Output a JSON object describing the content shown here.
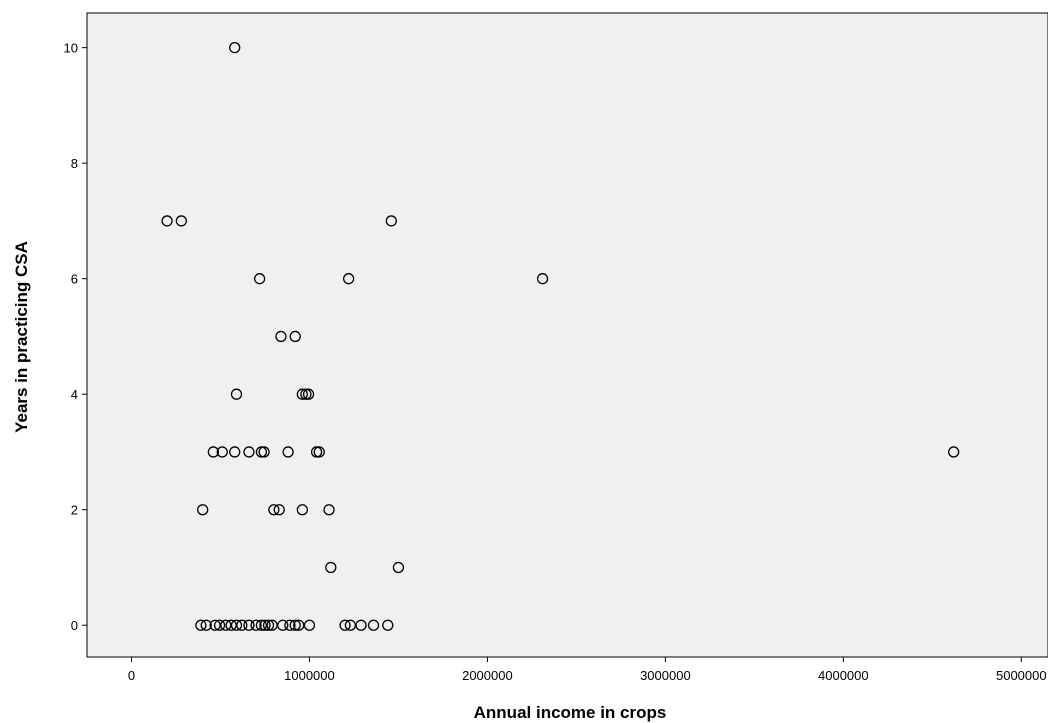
{
  "chart_data": {
    "type": "scatter",
    "xlabel": "Annual income in crops",
    "ylabel": "Years in practicing CSA",
    "xlim": [
      -250000,
      5150000
    ],
    "ylim": [
      -0.55,
      10.6
    ],
    "x_ticks": [
      0,
      1000000,
      2000000,
      3000000,
      4000000,
      5000000
    ],
    "x_tick_labels": [
      "0",
      "1000000",
      "2000000",
      "3000000",
      "4000000",
      "5000000"
    ],
    "y_ticks": [
      0,
      2,
      4,
      6,
      8,
      10
    ],
    "y_tick_labels": [
      "0",
      "2",
      "4",
      "6",
      "8",
      "10"
    ],
    "grid": false,
    "colors": {
      "plot_background": "#f0f0f0",
      "marker_stroke": "#000000",
      "marker_fill": "none"
    },
    "points": [
      {
        "x": 580000,
        "y": 10
      },
      {
        "x": 200000,
        "y": 7
      },
      {
        "x": 280000,
        "y": 7
      },
      {
        "x": 1460000,
        "y": 7
      },
      {
        "x": 720000,
        "y": 6
      },
      {
        "x": 1220000,
        "y": 6
      },
      {
        "x": 2310000,
        "y": 6
      },
      {
        "x": 840000,
        "y": 5
      },
      {
        "x": 920000,
        "y": 5
      },
      {
        "x": 590000,
        "y": 4
      },
      {
        "x": 960000,
        "y": 4
      },
      {
        "x": 980000,
        "y": 4
      },
      {
        "x": 995000,
        "y": 4
      },
      {
        "x": 460000,
        "y": 3
      },
      {
        "x": 510000,
        "y": 3
      },
      {
        "x": 580000,
        "y": 3
      },
      {
        "x": 660000,
        "y": 3
      },
      {
        "x": 730000,
        "y": 3
      },
      {
        "x": 745000,
        "y": 3
      },
      {
        "x": 880000,
        "y": 3
      },
      {
        "x": 1040000,
        "y": 3
      },
      {
        "x": 1055000,
        "y": 3
      },
      {
        "x": 4620000,
        "y": 3
      },
      {
        "x": 400000,
        "y": 2
      },
      {
        "x": 800000,
        "y": 2
      },
      {
        "x": 830000,
        "y": 2
      },
      {
        "x": 960000,
        "y": 2
      },
      {
        "x": 1110000,
        "y": 2
      },
      {
        "x": 1120000,
        "y": 1
      },
      {
        "x": 1500000,
        "y": 1
      },
      {
        "x": 390000,
        "y": 0
      },
      {
        "x": 420000,
        "y": 0
      },
      {
        "x": 470000,
        "y": 0
      },
      {
        "x": 495000,
        "y": 0
      },
      {
        "x": 530000,
        "y": 0
      },
      {
        "x": 560000,
        "y": 0
      },
      {
        "x": 590000,
        "y": 0
      },
      {
        "x": 620000,
        "y": 0
      },
      {
        "x": 660000,
        "y": 0
      },
      {
        "x": 700000,
        "y": 0
      },
      {
        "x": 730000,
        "y": 0
      },
      {
        "x": 750000,
        "y": 0
      },
      {
        "x": 770000,
        "y": 0
      },
      {
        "x": 790000,
        "y": 0
      },
      {
        "x": 850000,
        "y": 0
      },
      {
        "x": 890000,
        "y": 0
      },
      {
        "x": 920000,
        "y": 0
      },
      {
        "x": 940000,
        "y": 0
      },
      {
        "x": 1000000,
        "y": 0
      },
      {
        "x": 1200000,
        "y": 0
      },
      {
        "x": 1230000,
        "y": 0
      },
      {
        "x": 1290000,
        "y": 0
      },
      {
        "x": 1360000,
        "y": 0
      },
      {
        "x": 1440000,
        "y": 0
      }
    ]
  }
}
